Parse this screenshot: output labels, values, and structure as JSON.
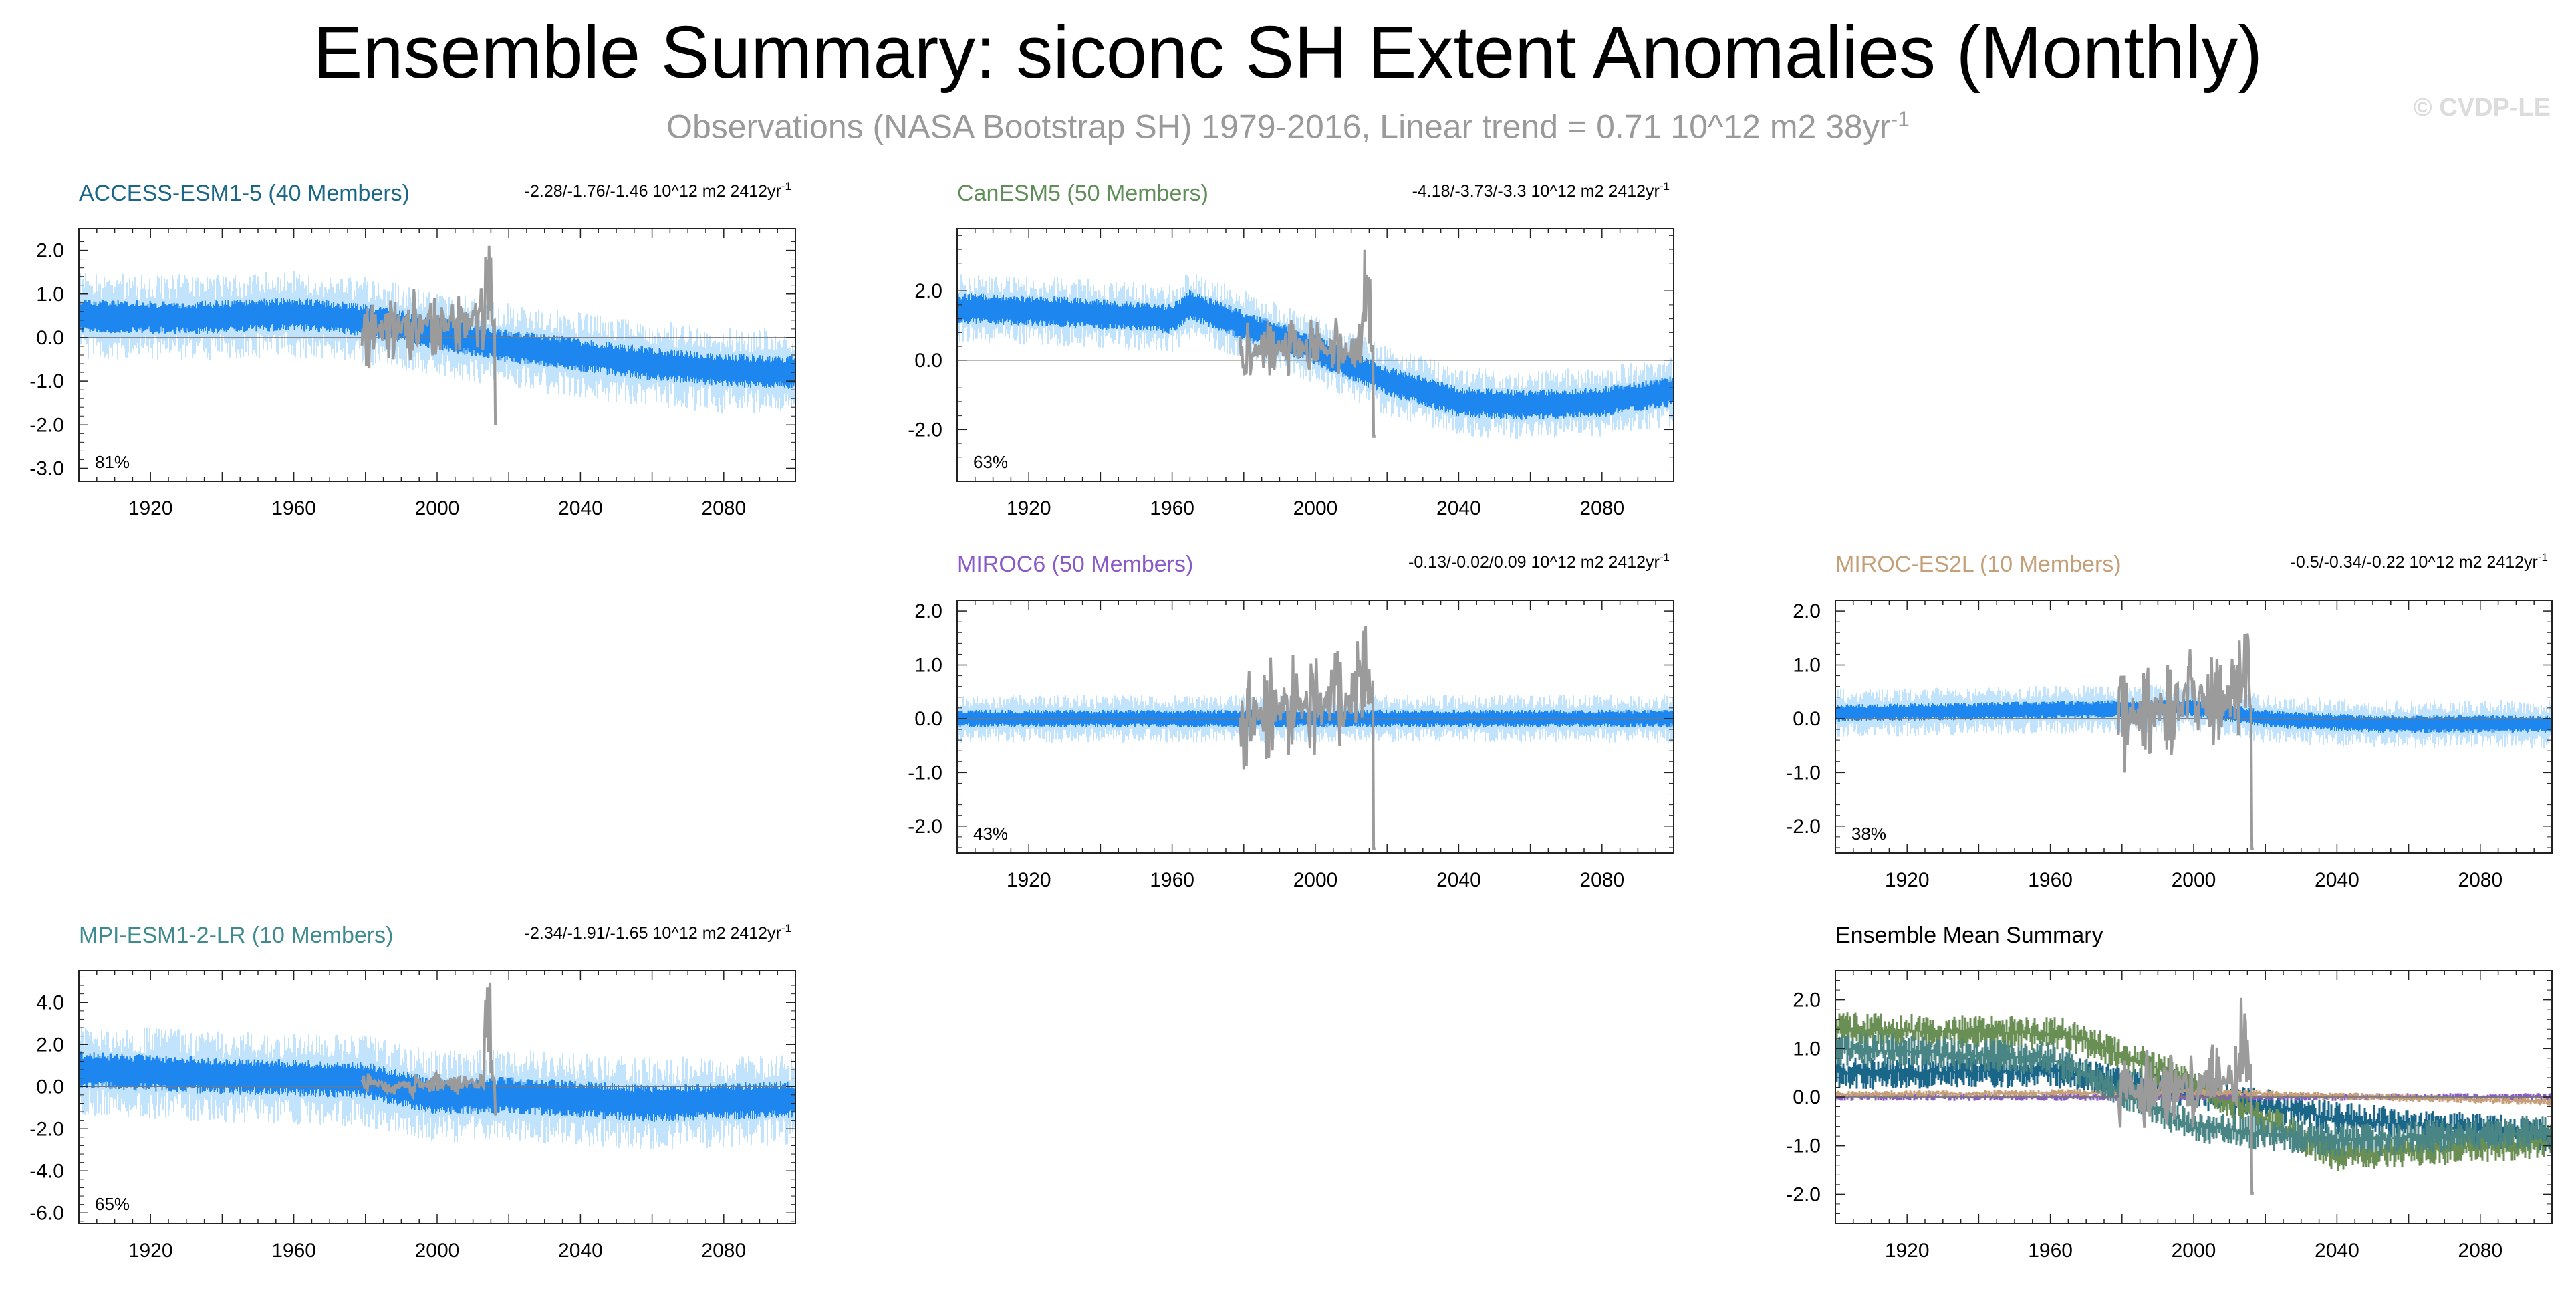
{
  "header": {
    "title": "Ensemble Summary: siconc SH Extent Anomalies (Monthly)",
    "subtitle": "Observations (NASA Bootstrap SH) 1979-2016, Linear trend = 0.71 10^12 m2 38yr",
    "subtitle_sup": "-1",
    "credit": "© CVDP-LE"
  },
  "colors": {
    "ensemble_spread": "#9ad0fb",
    "ensemble_band": "#1e86ef",
    "observations": "#9b9b9b",
    "axis": "#222222"
  },
  "chart_data": [
    {
      "type": "line",
      "name": "access",
      "title": "ACCESS-ESM1-5 (40 Members)",
      "title_color": "#1a6688",
      "trend_label": "-2.28/-1.76/-1.46 10^12 m2 2412yr",
      "trend_sup": "-1",
      "corner_label": "81%",
      "xlim": [
        1900,
        2100
      ],
      "ylim": [
        -3.3,
        2.5
      ],
      "xticks": [
        "1920",
        "1960",
        "2000",
        "2040",
        "2080"
      ],
      "yticks": [
        "2.0",
        "1.0",
        "0.0",
        "-1.0",
        "-2.0",
        "-3.0"
      ],
      "ytick_values": [
        2,
        1,
        0,
        -1,
        -2,
        -3
      ],
      "band_x": [
        1900,
        1930,
        1960,
        1980,
        2000,
        2020,
        2040,
        2060,
        2080,
        2100
      ],
      "band_mean": [
        0.5,
        0.45,
        0.55,
        0.4,
        0.1,
        -0.2,
        -0.4,
        -0.6,
        -0.75,
        -0.8
      ],
      "band_half_width": 0.35,
      "spread_half_width": 1.0,
      "obs_range": [
        1979,
        2016
      ],
      "obs_amp": 0.9
    },
    {
      "type": "line",
      "name": "canesm",
      "title": "CanESM5 (50 Members)",
      "title_color": "#5f8e58",
      "trend_label": "-4.18/-3.73/-3.3 10^12 m2 2412yr",
      "trend_sup": "-1",
      "corner_label": "63%",
      "xlim": [
        1900,
        2100
      ],
      "ylim": [
        -3.5,
        3.8
      ],
      "xticks": [
        "1920",
        "1960",
        "2000",
        "2040",
        "2080"
      ],
      "yticks": [
        "2.0",
        "0.0",
        "-2.0"
      ],
      "ytick_values": [
        2,
        0,
        -2
      ],
      "band_x": [
        1900,
        1930,
        1960,
        1965,
        1980,
        2000,
        2020,
        2040,
        2060,
        2080,
        2100
      ],
      "band_mean": [
        1.5,
        1.4,
        1.2,
        1.6,
        1.0,
        0.3,
        -0.6,
        -1.2,
        -1.3,
        -1.2,
        -0.9
      ],
      "band_half_width": 0.4,
      "spread_half_width": 1.0,
      "obs_range": [
        1979,
        2016
      ],
      "obs_amp": 1.0
    },
    {
      "type": "line",
      "name": "miroc6",
      "title": "MIROC6 (50 Members)",
      "title_color": "#8a5ac8",
      "trend_label": "-0.13/-0.02/0.09 10^12 m2 2412yr",
      "trend_sup": "-1",
      "corner_label": "43%",
      "xlim": [
        1900,
        2100
      ],
      "ylim": [
        -2.5,
        2.2
      ],
      "xticks": [
        "1920",
        "1960",
        "2000",
        "2040",
        "2080"
      ],
      "yticks": [
        "2.0",
        "1.0",
        "0.0",
        "-1.0",
        "-2.0"
      ],
      "ytick_values": [
        2,
        1,
        0,
        -1,
        -2
      ],
      "band_x": [
        1900,
        2000,
        2100
      ],
      "band_mean": [
        0.0,
        0.0,
        0.0
      ],
      "band_half_width": 0.15,
      "spread_half_width": 0.45,
      "obs_range": [
        1979,
        2016
      ],
      "obs_amp": 1.1
    },
    {
      "type": "line",
      "name": "mirocesl",
      "title": "MIROC-ES2L (10 Members)",
      "title_color": "#c49f77",
      "trend_label": "-0.5/-0.34/-0.22 10^12 m2 2412yr",
      "trend_sup": "-1",
      "corner_label": "38%",
      "xlim": [
        1900,
        2100
      ],
      "ylim": [
        -2.5,
        2.2
      ],
      "xticks": [
        "1920",
        "1960",
        "2000",
        "2040",
        "2080"
      ],
      "yticks": [
        "2.0",
        "1.0",
        "0.0",
        "-1.0",
        "-2.0"
      ],
      "ytick_values": [
        2,
        1,
        0,
        -1,
        -2
      ],
      "band_x": [
        1900,
        1950,
        2000,
        2020,
        2050,
        2100
      ],
      "band_mean": [
        0.1,
        0.15,
        0.2,
        0.0,
        -0.1,
        -0.1
      ],
      "band_half_width": 0.15,
      "spread_half_width": 0.45,
      "obs_range": [
        1979,
        2016
      ],
      "obs_amp": 1.1
    },
    {
      "type": "line",
      "name": "mpi",
      "title": "MPI-ESM1-2-LR (10 Members)",
      "title_color": "#3d8b8f",
      "trend_label": "-2.34/-1.91/-1.65 10^12 m2 2412yr",
      "trend_sup": "-1",
      "corner_label": "65%",
      "xlim": [
        1900,
        2100
      ],
      "ylim": [
        -6.5,
        5.5
      ],
      "xticks": [
        "1920",
        "1960",
        "2000",
        "2040",
        "2080"
      ],
      "yticks": [
        "4.0",
        "2.0",
        "0.0",
        "-2.0",
        "-4.0",
        "-6.0"
      ],
      "ytick_values": [
        4,
        2,
        0,
        -2,
        -4,
        -6
      ],
      "band_x": [
        1900,
        1940,
        1980,
        2000,
        2020,
        2060,
        2100
      ],
      "band_mean": [
        0.8,
        0.5,
        0.3,
        -0.5,
        -0.4,
        -0.8,
        -0.6
      ],
      "band_half_width": 0.8,
      "spread_half_width": 2.2,
      "obs_range": [
        1979,
        2016
      ],
      "obs_amp": 0.6
    },
    {
      "type": "line",
      "name": "ensmean",
      "title": "Ensemble Mean Summary",
      "title_color": "#000000",
      "trend_label": "",
      "trend_sup": "",
      "corner_label": "",
      "xlim": [
        1900,
        2100
      ],
      "ylim": [
        -2.6,
        2.6
      ],
      "xticks": [
        "1920",
        "1960",
        "2000",
        "2040",
        "2080"
      ],
      "yticks": [
        "2.0",
        "1.0",
        "0.0",
        "-1.0",
        "-2.0"
      ],
      "ytick_values": [
        2,
        1,
        0,
        -1,
        -2
      ],
      "series": [
        {
          "name": "ACCESS-ESM1-5",
          "color": "#1a6688",
          "x": [
            1900,
            1960,
            2000,
            2040,
            2100
          ],
          "values": [
            0.5,
            0.55,
            0.1,
            -0.45,
            -0.8
          ]
        },
        {
          "name": "CanESM5",
          "color": "#6a8f55",
          "x": [
            1900,
            1965,
            2000,
            2040,
            2100
          ],
          "values": [
            1.4,
            1.3,
            0.3,
            -1.2,
            -0.9
          ]
        },
        {
          "name": "MIROC6",
          "color": "#8a5ac8",
          "x": [
            1900,
            2100
          ],
          "values": [
            0.0,
            0.0
          ]
        },
        {
          "name": "MIROC-ES2L",
          "color": "#c49f77",
          "x": [
            1900,
            2000,
            2100
          ],
          "values": [
            0.05,
            0.1,
            -0.1
          ]
        },
        {
          "name": "MPI-ESM1-2-LR",
          "color": "#4a8585",
          "x": [
            1900,
            1960,
            2000,
            2040,
            2100
          ],
          "values": [
            1.0,
            0.8,
            -0.6,
            -0.9,
            -0.7
          ]
        }
      ],
      "obs_range": [
        1979,
        2016
      ],
      "obs_amp": 0.9
    }
  ]
}
